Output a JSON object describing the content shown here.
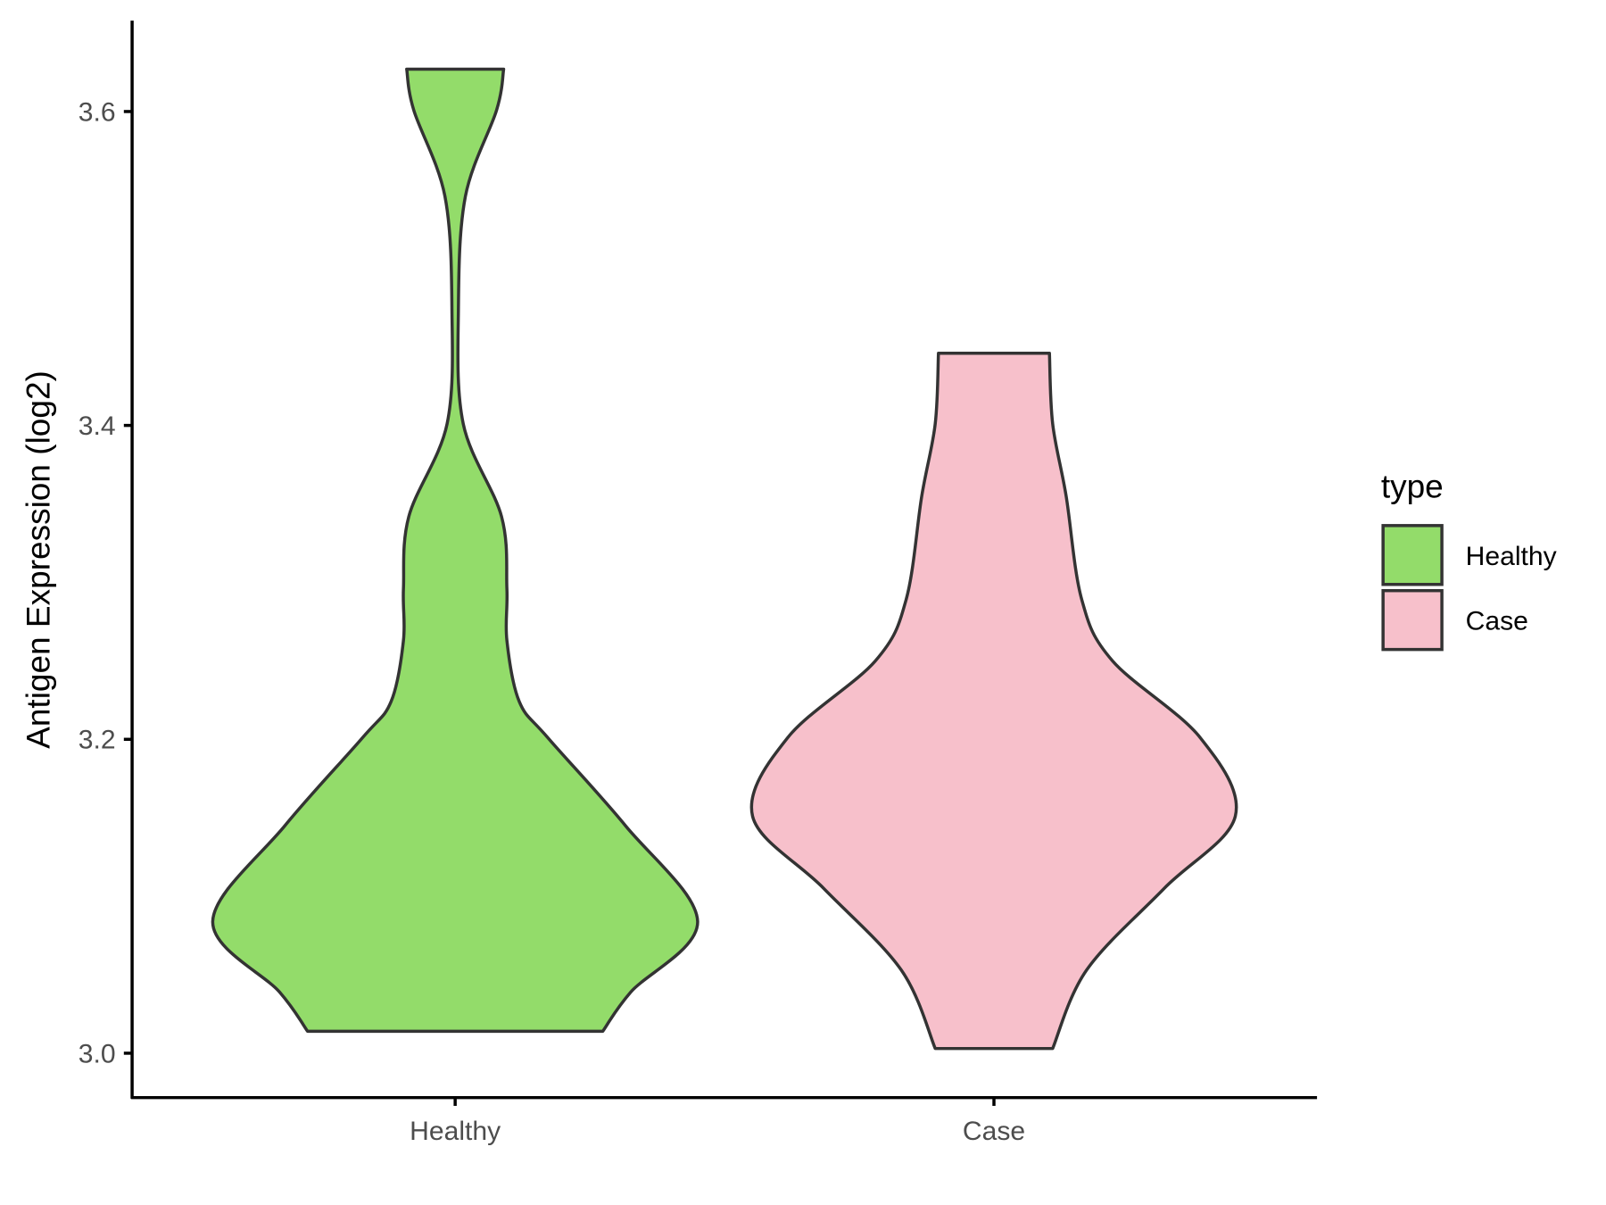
{
  "chart_data": {
    "type": "violin",
    "title": "",
    "xlabel": "",
    "ylabel": "Antigen Expression (log2)",
    "ylim": [
      2.973,
      3.66
    ],
    "yticks": [
      3.0,
      3.2,
      3.4,
      3.6
    ],
    "ytick_labels": [
      "3.0",
      "3.2",
      "3.4",
      "3.6"
    ],
    "categories": [
      "Healthy",
      "Case"
    ],
    "legend": {
      "title": "type",
      "position": "right",
      "entries": [
        "Healthy",
        "Case"
      ]
    },
    "series": [
      {
        "name": "Healthy",
        "color": "#93DC6A",
        "profile_note": "pairs of [value, half-width in category units]",
        "profile": [
          [
            3.627,
            0.09
          ],
          [
            3.601,
            0.077
          ],
          [
            3.546,
            0.019
          ],
          [
            3.474,
            0.006
          ],
          [
            3.401,
            0.015
          ],
          [
            3.342,
            0.086
          ],
          [
            3.296,
            0.096
          ],
          [
            3.263,
            0.096
          ],
          [
            3.224,
            0.119
          ],
          [
            3.201,
            0.172
          ],
          [
            3.145,
            0.316
          ],
          [
            3.084,
            0.45
          ],
          [
            3.039,
            0.326
          ],
          [
            3.014,
            0.274
          ]
        ]
      },
      {
        "name": "Case",
        "color": "#F7C0CB",
        "profile_note": "pairs of [value, half-width in category units]",
        "profile": [
          [
            3.446,
            0.103
          ],
          [
            3.401,
            0.109
          ],
          [
            3.355,
            0.134
          ],
          [
            3.289,
            0.163
          ],
          [
            3.25,
            0.22
          ],
          [
            3.201,
            0.383
          ],
          [
            3.151,
            0.448
          ],
          [
            3.105,
            0.316
          ],
          [
            3.053,
            0.172
          ],
          [
            3.003,
            0.109
          ]
        ]
      }
    ],
    "outline_color": "#333333",
    "grid": false
  }
}
